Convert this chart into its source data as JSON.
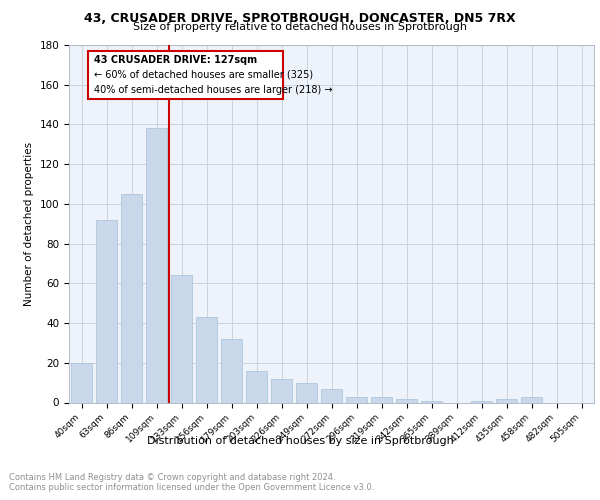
{
  "title1": "43, CRUSADER DRIVE, SPROTBROUGH, DONCASTER, DN5 7RX",
  "title2": "Size of property relative to detached houses in Sprotbrough",
  "xlabel": "Distribution of detached houses by size in Sprotbrough",
  "ylabel": "Number of detached properties",
  "categories": [
    "40sqm",
    "63sqm",
    "86sqm",
    "109sqm",
    "133sqm",
    "156sqm",
    "179sqm",
    "203sqm",
    "226sqm",
    "249sqm",
    "272sqm",
    "296sqm",
    "319sqm",
    "342sqm",
    "365sqm",
    "389sqm",
    "412sqm",
    "435sqm",
    "458sqm",
    "482sqm",
    "505sqm"
  ],
  "values": [
    20,
    92,
    105,
    138,
    64,
    43,
    32,
    16,
    12,
    10,
    7,
    3,
    3,
    2,
    1,
    0,
    1,
    2,
    3,
    0,
    0
  ],
  "bar_color": "#c8d8ea",
  "bar_edge_color": "#a8c0d8",
  "marker_label": "43 CRUSADER DRIVE: 127sqm",
  "pct_smaller": "60% of detached houses are smaller (325)",
  "pct_larger": "40% of semi-detached houses are larger (218)",
  "marker_color": "#cc0000",
  "box_edge_color": "#cc0000",
  "ylim": [
    0,
    180
  ],
  "yticks": [
    0,
    20,
    40,
    60,
    80,
    100,
    120,
    140,
    160,
    180
  ],
  "footer_text": "Contains HM Land Registry data © Crown copyright and database right 2024.\nContains public sector information licensed under the Open Government Licence v3.0.",
  "bg_color": "#eef3fb",
  "grid_color": "#c5cdd8"
}
